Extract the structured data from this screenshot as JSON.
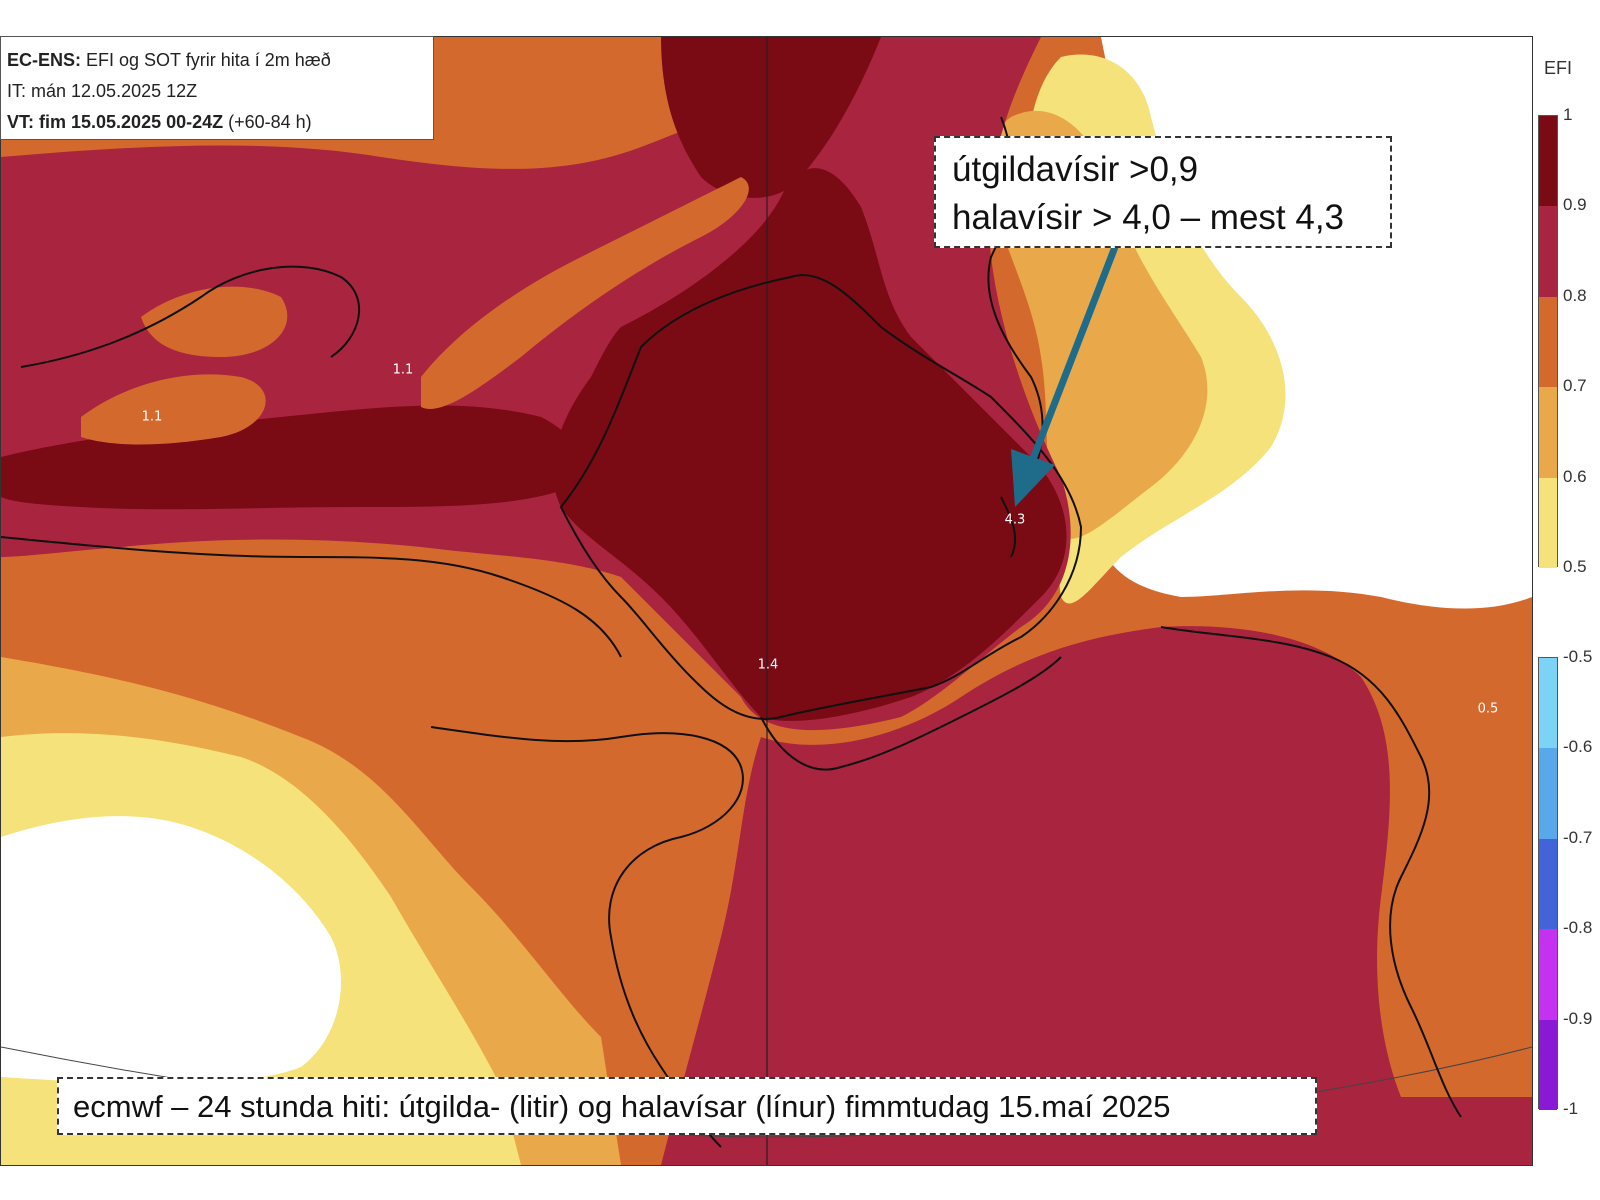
{
  "header": {
    "line1_bold": "EC-ENS:",
    "line1_rest": " EFI og SOT fyrir hita í 2m hæð",
    "line2": "IT: mán 12.05.2025 12Z",
    "line3_bold": "VT: fim 15.05.2025 00-24Z",
    "line3_rest": " (+60-84 h)"
  },
  "callout": {
    "line1": "útgildavísir >0,9",
    "line2": "halavísir > 4,0 – mest 4,3"
  },
  "caption": "ecmwf – 24 stunda hiti: útgilda- (litir) og halavísar (línur) fimmtudag 15.maí 2025",
  "map_labels": [
    "1.1",
    "1.1",
    "4.3",
    "1.4",
    "0.5"
  ],
  "legend": {
    "title": "EFI",
    "positive": {
      "ticks": [
        "1",
        "0.9",
        "0.8",
        "0.7",
        "0.6",
        "0.5"
      ],
      "colors": [
        "#7a0a14",
        "#a8243f",
        "#d4692e",
        "#e9a849",
        "#f5e27a"
      ]
    },
    "negative": {
      "ticks": [
        "-0.5",
        "-0.6",
        "-0.7",
        "-0.8",
        "-0.9",
        "-1"
      ],
      "colors": [
        "#7dd3f5",
        "#5aa8ec",
        "#4364d9",
        "#c531f0",
        "#8a19d6"
      ]
    }
  },
  "colors": {
    "efi_above_0_9": "#7a0a14",
    "efi_0_8_0_9": "#a8243f",
    "efi_0_7_0_8": "#d4692e",
    "efi_0_6_0_7": "#e9a849",
    "efi_0_5_0_6": "#f5e27a",
    "arrow": "#1f6b8a"
  }
}
